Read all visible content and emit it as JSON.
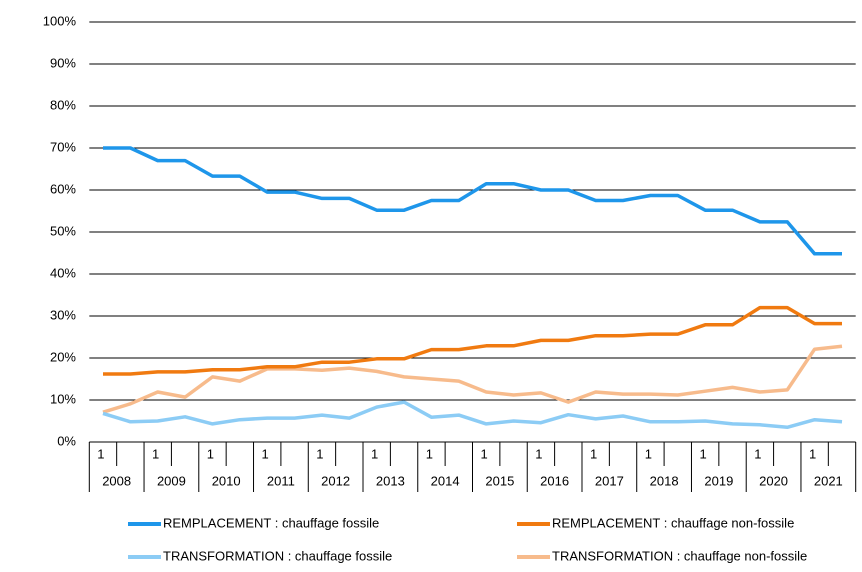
{
  "chart_data": {
    "type": "line",
    "categories": [
      "1",
      null,
      "1",
      null,
      "1",
      null,
      "1",
      null,
      "1",
      null,
      "1",
      null,
      "1",
      null,
      "1",
      null,
      "1",
      null,
      "1",
      null,
      "1",
      null,
      "1",
      null,
      "1",
      null,
      "1",
      null
    ],
    "groups": [
      "2008",
      "2009",
      "2010",
      "2011",
      "2012",
      "2013",
      "2014",
      "2015",
      "2016",
      "2017",
      "2018",
      "2019",
      "2020",
      "2021"
    ],
    "ylim": [
      0,
      100
    ],
    "yticks": [
      {
        "value": 0,
        "label": "0%"
      },
      {
        "value": 10,
        "label": "10%"
      },
      {
        "value": 20,
        "label": "20%"
      },
      {
        "value": 30,
        "label": "30%"
      },
      {
        "value": 40,
        "label": "40%"
      },
      {
        "value": 50,
        "label": "50%"
      },
      {
        "value": 60,
        "label": "60%"
      },
      {
        "value": 70,
        "label": "70%"
      },
      {
        "value": 80,
        "label": "80%"
      },
      {
        "value": 90,
        "label": "90%"
      },
      {
        "value": 100,
        "label": "100%"
      }
    ],
    "grid": true,
    "legend": "bottom",
    "series": [
      {
        "name": "REMPLACEMENT : chauffage fossile",
        "color": "#1e96ea",
        "values": [
          70,
          70,
          67,
          67,
          63.3,
          63.3,
          59.5,
          59.5,
          58,
          58,
          55.2,
          55.2,
          57.5,
          57.5,
          61.5,
          61.5,
          60,
          60,
          57.5,
          57.5,
          58.7,
          58.7,
          55.2,
          55.2,
          52.4,
          52.4,
          44.8,
          44.8
        ]
      },
      {
        "name": "REMPLACEMENT : chauffage non-fossile",
        "color": "#f07a10",
        "values": [
          16.2,
          16.2,
          16.7,
          16.7,
          17.2,
          17.2,
          17.9,
          17.9,
          19,
          19,
          19.8,
          19.8,
          22,
          22,
          22.9,
          22.9,
          24.2,
          24.2,
          25.3,
          25.3,
          25.7,
          25.7,
          27.9,
          27.9,
          32,
          32,
          28.2,
          28.2
        ]
      },
      {
        "name": "TRANSFORMATION : chauffage fossile",
        "color": "#8cccf5",
        "values": [
          6.8,
          4.8,
          5,
          6,
          4.3,
          5.3,
          5.7,
          5.7,
          6.4,
          5.7,
          8.3,
          9.5,
          5.9,
          6.4,
          4.3,
          5,
          4.6,
          6.5,
          5.5,
          6.2,
          4.8,
          4.8,
          5,
          4.3,
          4.1,
          3.5,
          5.3,
          4.8
        ]
      },
      {
        "name": "TRANSFORMATION : chauffage non-fossile",
        "color": "#f7bb8c",
        "values": [
          7.1,
          9.1,
          11.9,
          10.7,
          15.5,
          14.5,
          17.4,
          17.4,
          17.1,
          17.6,
          16.8,
          15.5,
          15,
          14.5,
          11.9,
          11.2,
          11.7,
          9.5,
          11.9,
          11.4,
          11.4,
          11.2,
          12.1,
          13,
          11.9,
          12.4,
          22.1,
          22.8
        ]
      }
    ]
  }
}
